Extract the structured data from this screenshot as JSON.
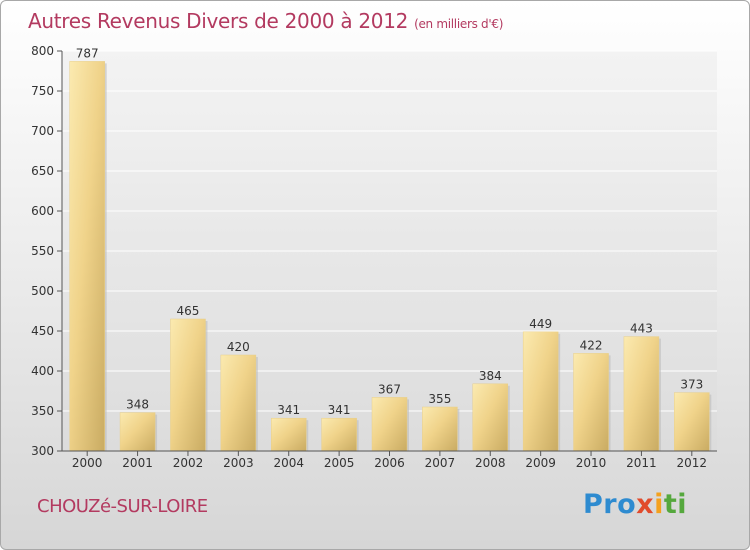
{
  "header": {
    "title": "Autres Revenus Divers de 2000 à 2012",
    "unit": "(en milliers d'€)"
  },
  "footer": {
    "commune": "CHOUZé-SUR-LOIRE",
    "logo": [
      "Pro",
      "x",
      "i",
      "ti"
    ]
  },
  "colors": {
    "title": "#b33a60",
    "bar_light": "#f7e3a0",
    "bar_dark": "#c9ab62"
  },
  "chart_data": {
    "type": "bar",
    "categories": [
      "2000",
      "2001",
      "2002",
      "2003",
      "2004",
      "2005",
      "2006",
      "2007",
      "2008",
      "2009",
      "2010",
      "2011",
      "2012"
    ],
    "values": [
      787,
      348,
      465,
      420,
      341,
      341,
      367,
      355,
      384,
      449,
      422,
      443,
      373
    ],
    "yticks": [
      300,
      350,
      400,
      450,
      500,
      550,
      600,
      650,
      700,
      750,
      800
    ],
    "ylim": [
      300,
      800
    ],
    "grid": true,
    "title": "Autres Revenus Divers de 2000 à 2012",
    "xlabel": "",
    "ylabel": ""
  }
}
